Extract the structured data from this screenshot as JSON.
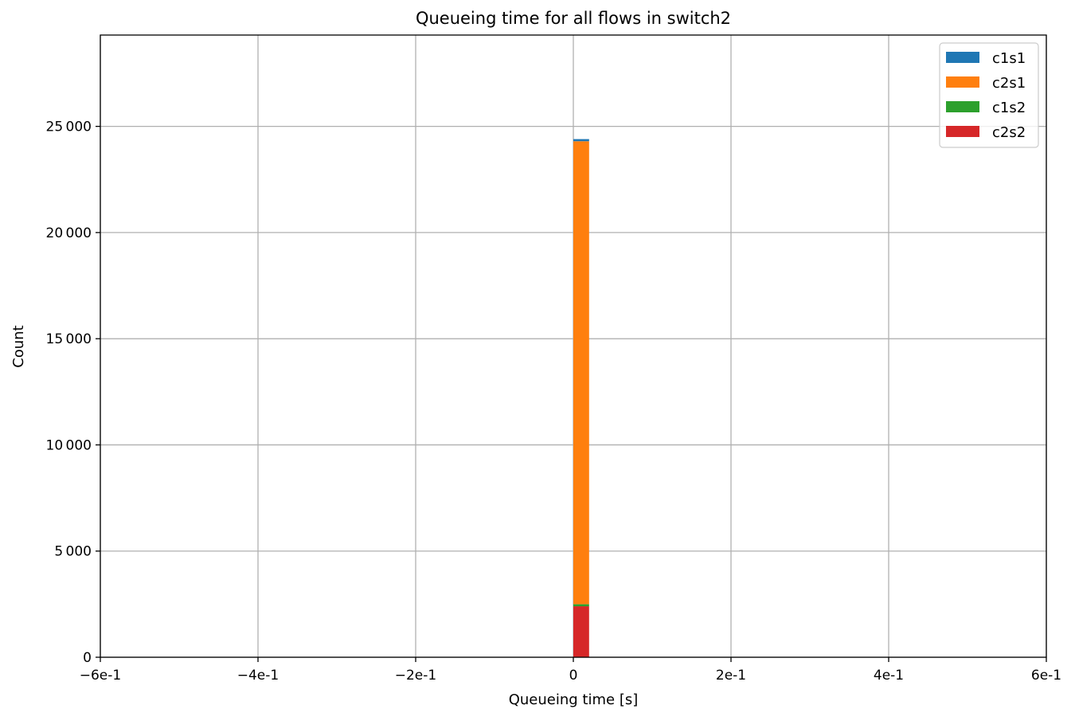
{
  "chart_data": {
    "type": "bar",
    "title": "Queueing time for all flows in switch2",
    "xlabel": "Queueing time [s]",
    "ylabel": "Count",
    "xlim": [
      -0.6,
      0.6
    ],
    "ylim": [
      0,
      29300
    ],
    "xticks": [
      -0.6,
      -0.4,
      -0.2,
      0,
      0.2,
      0.4,
      0.6
    ],
    "xtick_labels": [
      "−6e-1",
      "−4e-1",
      "−2e-1",
      "0",
      "2e-1",
      "4e-1",
      "6e-1"
    ],
    "yticks": [
      0,
      5000,
      10000,
      15000,
      20000,
      25000
    ],
    "ytick_labels": [
      "0",
      "5 000",
      "10 000",
      "15 000",
      "20 000",
      "25 000"
    ],
    "grid": true,
    "stacked": true,
    "legend_position": "top-right",
    "bins": [
      {
        "x0": 0.0,
        "x1": 0.02
      }
    ],
    "series": [
      {
        "name": "c2s2",
        "color": "#d62728",
        "values": [
          2400
        ]
      },
      {
        "name": "c1s2",
        "color": "#2ca02c",
        "values": [
          100
        ]
      },
      {
        "name": "c2s1",
        "color": "#ff7f0e",
        "values": [
          21800
        ]
      },
      {
        "name": "c1s1",
        "color": "#1f77b4",
        "values": [
          100
        ]
      }
    ],
    "legend_order": [
      "c1s1",
      "c2s1",
      "c1s2",
      "c2s2"
    ]
  }
}
